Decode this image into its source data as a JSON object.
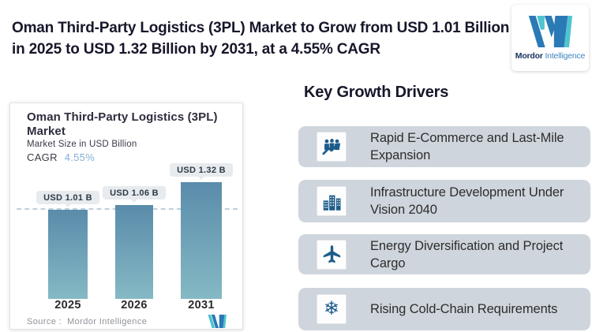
{
  "header": {
    "title": "Oman Third-Party Logistics (3PL) Market to Grow from USD 1.01 Billion in 2025 to USD 1.32 Billion by 2031, at a 4.55% CAGR"
  },
  "brand": {
    "name_primary": "Mordor",
    "name_secondary": "Intelligence"
  },
  "colors": {
    "brand_blue": "#2a7ab5",
    "brand_teal": "#4ec4cf",
    "icon_blue": "#1d5c8a",
    "bar_top": "#5a8cab",
    "bar_bottom": "#85b9c4",
    "cagr_blue": "#85aed3",
    "card_gray": "#cfd5dc",
    "pill_bg": "#e7ebee",
    "ref_line": "#a8c0d4",
    "title_dark": "#17172a"
  },
  "chart_card": {
    "title_line1": "Oman Third-Party Logistics (3PL)",
    "title_line2": "Market",
    "subtitle": "Market Size in USD Billion",
    "cagr_label": "CAGR",
    "cagr_value": "4.55%",
    "source_label": "Source :",
    "source_value": "Mordor Intelligence"
  },
  "chart_data": {
    "type": "bar",
    "title": "Oman Third-Party Logistics (3PL) Market",
    "ylabel": "Market Size in USD Billion",
    "categories": [
      "2025",
      "2026",
      "2031"
    ],
    "values": [
      1.01,
      1.06,
      1.32
    ],
    "labels": [
      "USD 1.01 B",
      "USD 1.06 B",
      "USD 1.32 B"
    ],
    "unit": "USD Billion",
    "cagr_percent": 4.55,
    "reference_line": 1.01,
    "ylim": [
      0,
      1.55
    ],
    "grid": "off",
    "legend": "none"
  },
  "drivers": {
    "heading": "Key Growth Drivers",
    "items": [
      {
        "icon": "ecommerce-growth-icon",
        "label": "Rapid E-Commerce and Last-Mile Expansion"
      },
      {
        "icon": "infrastructure-buildings-icon",
        "label": "Infrastructure Development Under Vision 2040"
      },
      {
        "icon": "airplane-icon",
        "label": "Energy Diversification and Project Cargo"
      },
      {
        "icon": "snowflake-icon",
        "label": "Rising Cold-Chain Requirements"
      }
    ]
  }
}
